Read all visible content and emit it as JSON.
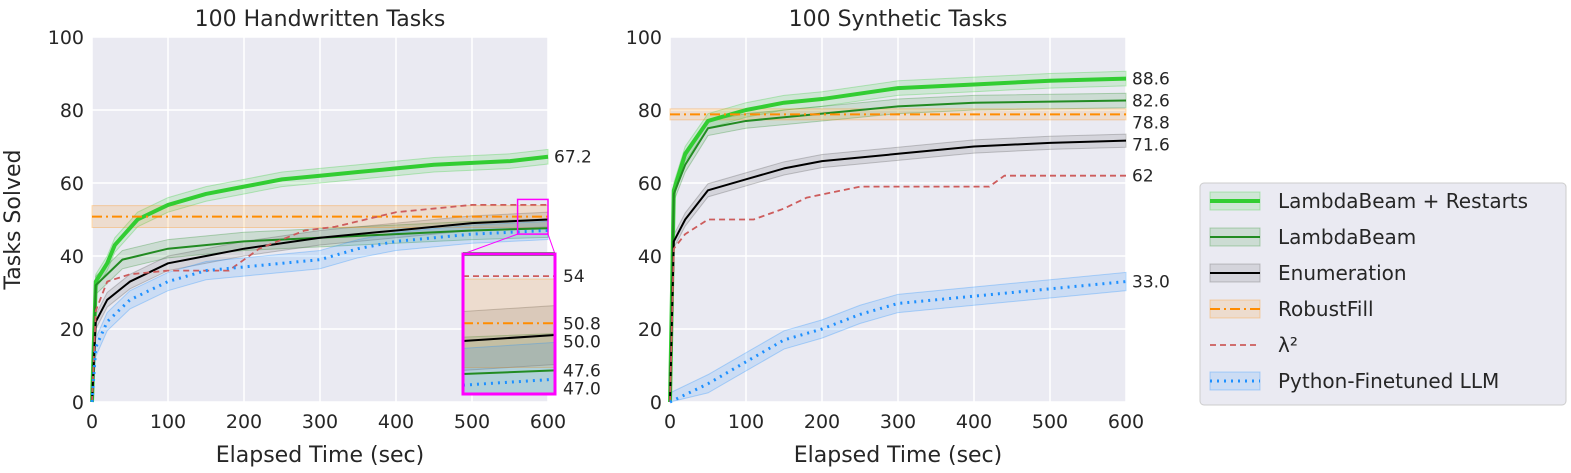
{
  "chart_data": [
    {
      "type": "line",
      "title": "100 Handwritten Tasks",
      "xlabel": "Elapsed Time (sec)",
      "ylabel": "Tasks Solved",
      "xlim": [
        0,
        600
      ],
      "ylim": [
        0,
        100
      ],
      "xticks": [
        0,
        100,
        200,
        300,
        400,
        500,
        600
      ],
      "yticks": [
        0,
        20,
        40,
        60,
        80,
        100
      ],
      "grid": true,
      "inset": {
        "xlim": [
          560,
          600
        ],
        "ylim": [
          46,
          55.5
        ],
        "labels": [
          "54",
          "50.8",
          "50.0",
          "47.6",
          "47.0"
        ],
        "label_values": [
          54,
          50.8,
          50.0,
          47.6,
          47.0
        ]
      },
      "series": [
        {
          "name": "LambdaBeam + Restarts",
          "band": 2,
          "x": [
            0,
            5,
            20,
            30,
            60,
            100,
            150,
            200,
            250,
            300,
            350,
            400,
            450,
            500,
            550,
            600
          ],
          "y": [
            0,
            33,
            38,
            43,
            50,
            54,
            57,
            59,
            61,
            62,
            63,
            64,
            65,
            65.5,
            66,
            67.2
          ],
          "end_label": ""
        },
        {
          "name": "LambdaBeam",
          "band": 2.5,
          "x": [
            0,
            5,
            20,
            40,
            100,
            200,
            300,
            400,
            500,
            600
          ],
          "y": [
            0,
            32,
            35,
            39,
            42,
            44,
            45,
            46,
            47,
            47.6
          ],
          "end_label": ""
        },
        {
          "name": "Enumeration",
          "band": 2,
          "x": [
            0,
            5,
            20,
            50,
            100,
            150,
            200,
            300,
            400,
            500,
            600
          ],
          "y": [
            0,
            22,
            28,
            33,
            38,
            40,
            42,
            45,
            47,
            49,
            50.0
          ],
          "end_label": ""
        },
        {
          "name": "RobustFill",
          "band": 3,
          "x": [
            0,
            600
          ],
          "y": [
            50.8,
            50.8
          ],
          "end_label": ""
        },
        {
          "name": "λ²",
          "band": 0,
          "x": [
            0,
            5,
            20,
            50,
            100,
            180,
            220,
            280,
            320,
            400,
            450,
            500,
            600
          ],
          "y": [
            0,
            25,
            33,
            35,
            36,
            36,
            42,
            47,
            48,
            52,
            53,
            54,
            54
          ],
          "end_label": ""
        },
        {
          "name": "Python-Finetuned LLM",
          "band": 2.5,
          "x": [
            0,
            5,
            20,
            50,
            100,
            150,
            200,
            300,
            350,
            400,
            500,
            600
          ],
          "y": [
            0,
            15,
            22,
            28,
            33,
            36,
            37,
            39,
            42,
            44,
            46,
            47.0
          ],
          "end_label": ""
        }
      ],
      "end_labels": [
        "67.2"
      ],
      "end_label_values": [
        67.2
      ]
    },
    {
      "type": "line",
      "title": "100 Synthetic Tasks",
      "xlabel": "Elapsed Time (sec)",
      "ylabel": "",
      "xlim": [
        0,
        600
      ],
      "ylim": [
        0,
        100
      ],
      "xticks": [
        0,
        100,
        200,
        300,
        400,
        500,
        600
      ],
      "yticks": [
        0,
        20,
        40,
        60,
        80,
        100
      ],
      "grid": true,
      "series": [
        {
          "name": "LambdaBeam + Restarts",
          "band": 2,
          "x": [
            0,
            5,
            20,
            50,
            100,
            150,
            200,
            300,
            400,
            500,
            600
          ],
          "y": [
            0,
            58,
            68,
            77,
            80,
            82,
            83,
            86,
            87,
            88,
            88.6
          ]
        },
        {
          "name": "LambdaBeam",
          "band": 2,
          "x": [
            0,
            5,
            20,
            50,
            100,
            200,
            300,
            400,
            600
          ],
          "y": [
            0,
            57,
            65,
            75,
            77,
            79,
            81,
            82,
            82.6
          ]
        },
        {
          "name": "Enumeration",
          "band": 1.8,
          "x": [
            0,
            5,
            20,
            50,
            100,
            150,
            200,
            300,
            400,
            500,
            600
          ],
          "y": [
            0,
            44,
            50,
            58,
            61,
            64,
            66,
            68,
            70,
            71,
            71.6
          ]
        },
        {
          "name": "RobustFill",
          "band": 1.5,
          "x": [
            0,
            600
          ],
          "y": [
            78.8,
            78.8
          ]
        },
        {
          "name": "λ²",
          "band": 0,
          "x": [
            0,
            5,
            20,
            50,
            110,
            150,
            180,
            250,
            420,
            440,
            600
          ],
          "y": [
            0,
            42,
            46,
            50,
            50,
            53,
            56,
            59,
            59,
            62,
            62
          ]
        },
        {
          "name": "Python-Finetuned LLM",
          "band": 2.5,
          "x": [
            0,
            50,
            100,
            150,
            200,
            250,
            300,
            400,
            500,
            600
          ],
          "y": [
            0,
            5,
            11,
            17,
            20,
            24,
            27,
            29,
            31,
            33.0
          ]
        }
      ],
      "end_labels": [
        "88.6",
        "82.6",
        "78.8",
        "71.6",
        "62",
        "33.0"
      ],
      "end_label_values": [
        88.6,
        82.6,
        78.8,
        71.6,
        62,
        33.0
      ]
    }
  ],
  "legend": {
    "placement": "right",
    "items": [
      "LambdaBeam + Restarts",
      "LambdaBeam",
      "Enumeration",
      "RobustFill",
      "λ²",
      "Python-Finetuned LLM"
    ]
  },
  "colors": {
    "restarts": "#32cd32",
    "lambdabeam": "#228b22",
    "enumeration": "#000000",
    "robustfill": "#ff8c00",
    "lambda2": "#cd5c5c",
    "llm": "#1e90ff",
    "inset": "#ff00ff",
    "background": "#eaeaf2"
  }
}
